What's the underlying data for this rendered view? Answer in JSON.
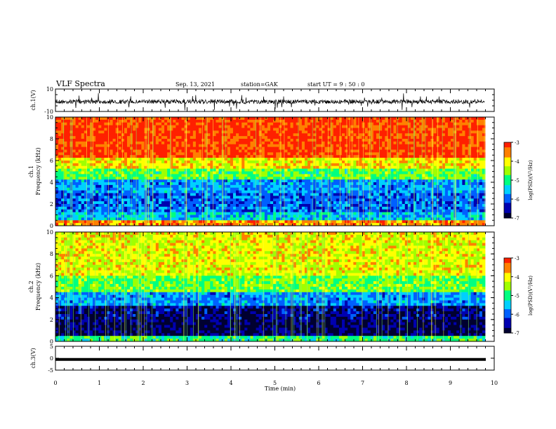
{
  "header": {
    "title": "VLF Spectra",
    "date": "Sep. 13, 2021",
    "station": "station=GAK",
    "start": "start UT =  9 : 50 : 0"
  },
  "chart_data": [
    {
      "type": "line",
      "name": "ch1-waveform",
      "ylabel": "ch.1(V)",
      "ylim": [
        -10,
        10
      ],
      "yticks": [
        "10",
        "-10"
      ],
      "xlim": [
        0,
        10
      ]
    },
    {
      "type": "heatmap",
      "name": "ch1-spectrogram",
      "ylabel": "ch.1\nFrequency (kHz)",
      "ylabel_line1": "ch.1",
      "ylabel_line2": "Frequency (kHz)",
      "ylim": [
        0,
        10
      ],
      "yticks": [
        "0",
        "2",
        "4",
        "6",
        "8",
        "10"
      ],
      "xlim": [
        0,
        10
      ],
      "colorbar": {
        "label": "log(PSD)(V²/Hz)",
        "ticks": [
          "-3",
          "-4",
          "-5",
          "-6",
          "-7"
        ],
        "range": [
          -7,
          -3
        ]
      }
    },
    {
      "type": "heatmap",
      "name": "ch2-spectrogram",
      "ylabel_line1": "ch.2",
      "ylabel_line2": "Frequency (kHz)",
      "ylim": [
        0,
        10
      ],
      "yticks": [
        "0",
        "2",
        "4",
        "6",
        "8",
        "10"
      ],
      "xlim": [
        0,
        10
      ],
      "colorbar": {
        "label": "log(PSD)(V²/Hz)",
        "ticks": [
          "-3",
          "-4",
          "-5",
          "-6",
          "-7"
        ],
        "range": [
          -7,
          -3
        ]
      }
    },
    {
      "type": "line",
      "name": "ch3-waveform",
      "ylabel": "ch.3(V)",
      "ylim": [
        -5,
        5
      ],
      "yticks": [
        "5",
        "0",
        "-5"
      ],
      "xlim": [
        0,
        10
      ],
      "series": [
        {
          "values": [
            -0.5,
            -0.5
          ]
        }
      ]
    }
  ],
  "xaxis": {
    "label": "Time (min)",
    "ticks": [
      "0",
      "1",
      "2",
      "3",
      "4",
      "5",
      "6",
      "7",
      "8",
      "9",
      "10"
    ]
  },
  "colors": {
    "scale": [
      "#000030",
      "#0000b0",
      "#0060ff",
      "#00d0ff",
      "#00ff80",
      "#a0ff00",
      "#ffff00",
      "#ff8000",
      "#ff2000"
    ]
  }
}
